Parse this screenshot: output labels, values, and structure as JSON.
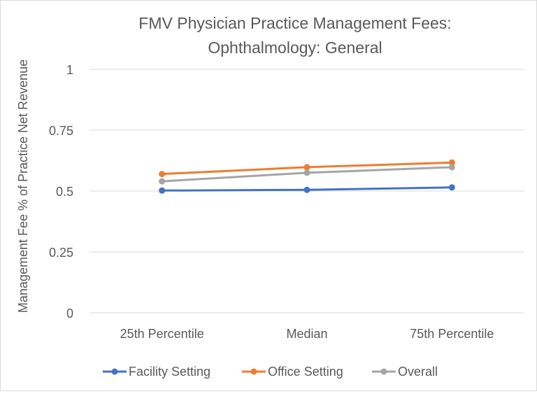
{
  "chart_data": {
    "type": "line",
    "title": [
      "FMV Physician Practice Management Fees:",
      "Ophthalmology: General"
    ],
    "xlabel": "",
    "ylabel": "Management Fee % of Practice Net Revenue",
    "categories": [
      "25th Percentile",
      "Median",
      "75th Percentile"
    ],
    "y_ticks": [
      "0",
      "0.25",
      "0.5",
      "0.75",
      "1"
    ],
    "ylim": [
      0,
      1
    ],
    "grid": true,
    "legend_position": "bottom",
    "series": [
      {
        "name": "Facility Setting",
        "color": "#4472c4",
        "values": [
          0.502,
          0.505,
          0.515
        ]
      },
      {
        "name": "Office Setting",
        "color": "#ed7d31",
        "values": [
          0.57,
          0.598,
          0.617
        ]
      },
      {
        "name": "Overall",
        "color": "#a5a5a5",
        "values": [
          0.54,
          0.575,
          0.598
        ]
      }
    ]
  }
}
